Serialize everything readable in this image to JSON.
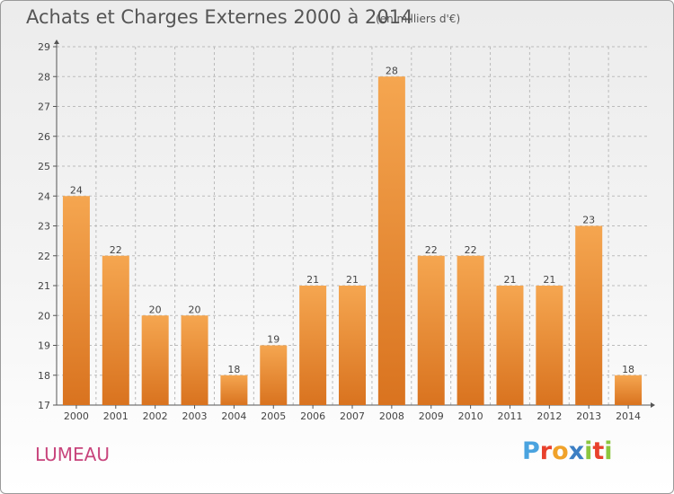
{
  "header": {
    "title": "Achats et Charges Externes 2000 à 2014",
    "subtitle": "(en milliers d'€)"
  },
  "footer": {
    "town": "LUMEAU",
    "logo_text": "Proxiti",
    "logo_colors": [
      "#4aa3df",
      "#e8412c",
      "#f0a22a",
      "#3c7fc4",
      "#8cc63f",
      "#e8412c",
      "#8cc63f"
    ]
  },
  "chart_data": {
    "type": "bar",
    "categories": [
      "2000",
      "2001",
      "2002",
      "2003",
      "2004",
      "2005",
      "2006",
      "2007",
      "2008",
      "2009",
      "2010",
      "2011",
      "2012",
      "2013",
      "2014"
    ],
    "values": [
      24,
      22,
      20,
      20,
      18,
      19,
      21,
      21,
      28,
      22,
      22,
      21,
      21,
      23,
      18
    ],
    "ylim": [
      17,
      29
    ],
    "yticks": [
      17,
      18,
      19,
      20,
      21,
      22,
      23,
      24,
      25,
      26,
      27,
      28,
      29
    ],
    "grid": true,
    "bar_color_top": "#f5a650",
    "bar_color_bottom": "#d9731f",
    "grid_color": "#bbbbbb"
  }
}
